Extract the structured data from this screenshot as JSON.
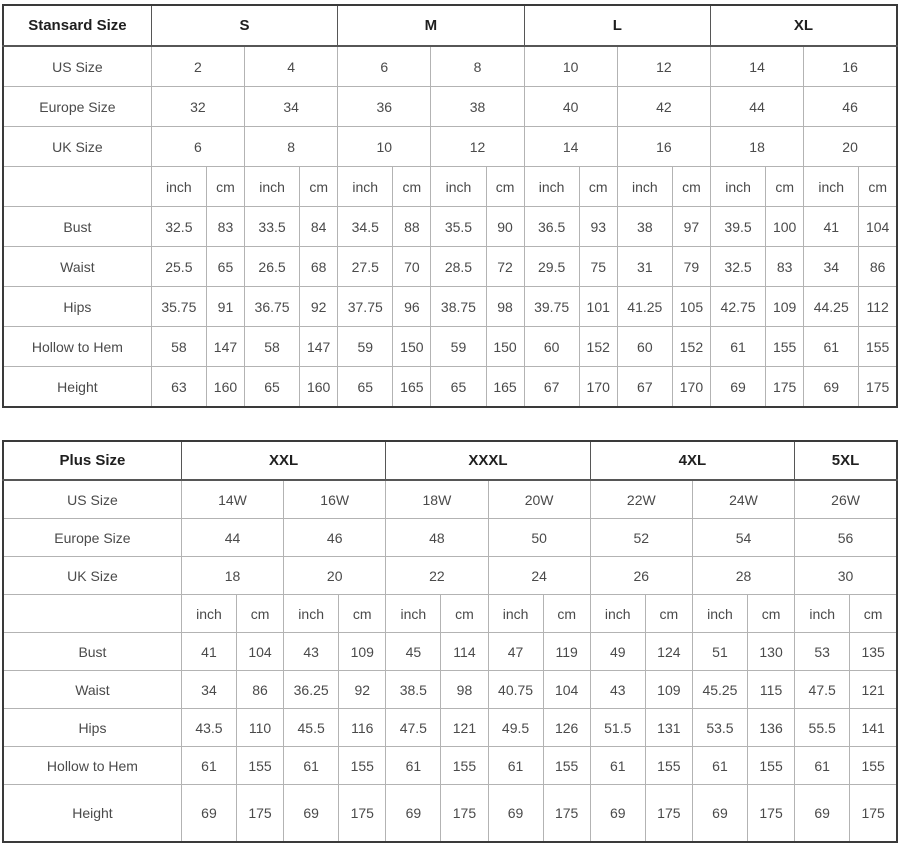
{
  "colors": {
    "outer_border": "#3a3a3a",
    "inner_border": "#b3b3b3",
    "header_text": "#1f1f1f",
    "body_text": "#4a4a4a",
    "background": "#ffffff"
  },
  "chart_data": [
    {
      "type": "table",
      "corner_label": "Stansard Size",
      "size_groups": [
        {
          "label": "S",
          "span": 2
        },
        {
          "label": "M",
          "span": 2
        },
        {
          "label": "L",
          "span": 2
        },
        {
          "label": "XL",
          "span": 2
        }
      ],
      "size_rows": [
        {
          "label": "US Size",
          "bold": true,
          "values": [
            "2",
            "4",
            "6",
            "8",
            "10",
            "12",
            "14",
            "16"
          ]
        },
        {
          "label": "Europe Size",
          "bold": false,
          "values": [
            "32",
            "34",
            "36",
            "38",
            "40",
            "42",
            "44",
            "46"
          ]
        },
        {
          "label": "UK Size",
          "bold": false,
          "values": [
            "6",
            "8",
            "10",
            "12",
            "14",
            "16",
            "18",
            "20"
          ]
        }
      ],
      "unit_pair": [
        "inch",
        "cm"
      ],
      "measure_rows": [
        {
          "label": "Bust",
          "values": [
            "32.5",
            "83",
            "33.5",
            "84",
            "34.5",
            "88",
            "35.5",
            "90",
            "36.5",
            "93",
            "38",
            "97",
            "39.5",
            "100",
            "41",
            "104"
          ]
        },
        {
          "label": "Waist",
          "values": [
            "25.5",
            "65",
            "26.5",
            "68",
            "27.5",
            "70",
            "28.5",
            "72",
            "29.5",
            "75",
            "31",
            "79",
            "32.5",
            "83",
            "34",
            "86"
          ]
        },
        {
          "label": "Hips",
          "values": [
            "35.75",
            "91",
            "36.75",
            "92",
            "37.75",
            "96",
            "38.75",
            "98",
            "39.75",
            "101",
            "41.25",
            "105",
            "42.75",
            "109",
            "44.25",
            "112"
          ]
        },
        {
          "label": "Hollow to Hem",
          "values": [
            "58",
            "147",
            "58",
            "147",
            "59",
            "150",
            "59",
            "150",
            "60",
            "152",
            "60",
            "152",
            "61",
            "155",
            "61",
            "155"
          ]
        },
        {
          "label": "Height",
          "values": [
            "63",
            "160",
            "65",
            "160",
            "65",
            "165",
            "65",
            "165",
            "67",
            "170",
            "67",
            "170",
            "69",
            "175",
            "69",
            "175"
          ]
        }
      ]
    },
    {
      "type": "table",
      "corner_label": "Plus Size",
      "size_groups": [
        {
          "label": "XXL",
          "span": 2
        },
        {
          "label": "XXXL",
          "span": 2
        },
        {
          "label": "4XL",
          "span": 2
        },
        {
          "label": "5XL",
          "span": 1
        }
      ],
      "size_rows": [
        {
          "label": "US Size",
          "bold": true,
          "values": [
            "14W",
            "16W",
            "18W",
            "20W",
            "22W",
            "24W",
            "26W"
          ]
        },
        {
          "label": "Europe Size",
          "bold": false,
          "values": [
            "44",
            "46",
            "48",
            "50",
            "52",
            "54",
            "56"
          ]
        },
        {
          "label": "UK Size",
          "bold": false,
          "values": [
            "18",
            "20",
            "22",
            "24",
            "26",
            "28",
            "30"
          ]
        }
      ],
      "unit_pair": [
        "inch",
        "cm"
      ],
      "measure_rows": [
        {
          "label": "Bust",
          "values": [
            "41",
            "104",
            "43",
            "109",
            "45",
            "114",
            "47",
            "119",
            "49",
            "124",
            "51",
            "130",
            "53",
            "135"
          ]
        },
        {
          "label": "Waist",
          "values": [
            "34",
            "86",
            "36.25",
            "92",
            "38.5",
            "98",
            "40.75",
            "104",
            "43",
            "109",
            "45.25",
            "115",
            "47.5",
            "121"
          ]
        },
        {
          "label": "Hips",
          "values": [
            "43.5",
            "110",
            "45.5",
            "116",
            "47.5",
            "121",
            "49.5",
            "126",
            "51.5",
            "131",
            "53.5",
            "136",
            "55.5",
            "141"
          ]
        },
        {
          "label": "Hollow to Hem",
          "values": [
            "61",
            "155",
            "61",
            "155",
            "61",
            "155",
            "61",
            "155",
            "61",
            "155",
            "61",
            "155",
            "61",
            "155"
          ]
        },
        {
          "label": "Height",
          "values": [
            "69",
            "175",
            "69",
            "175",
            "69",
            "175",
            "69",
            "175",
            "69",
            "175",
            "69",
            "175",
            "69",
            "175"
          ]
        }
      ]
    }
  ]
}
